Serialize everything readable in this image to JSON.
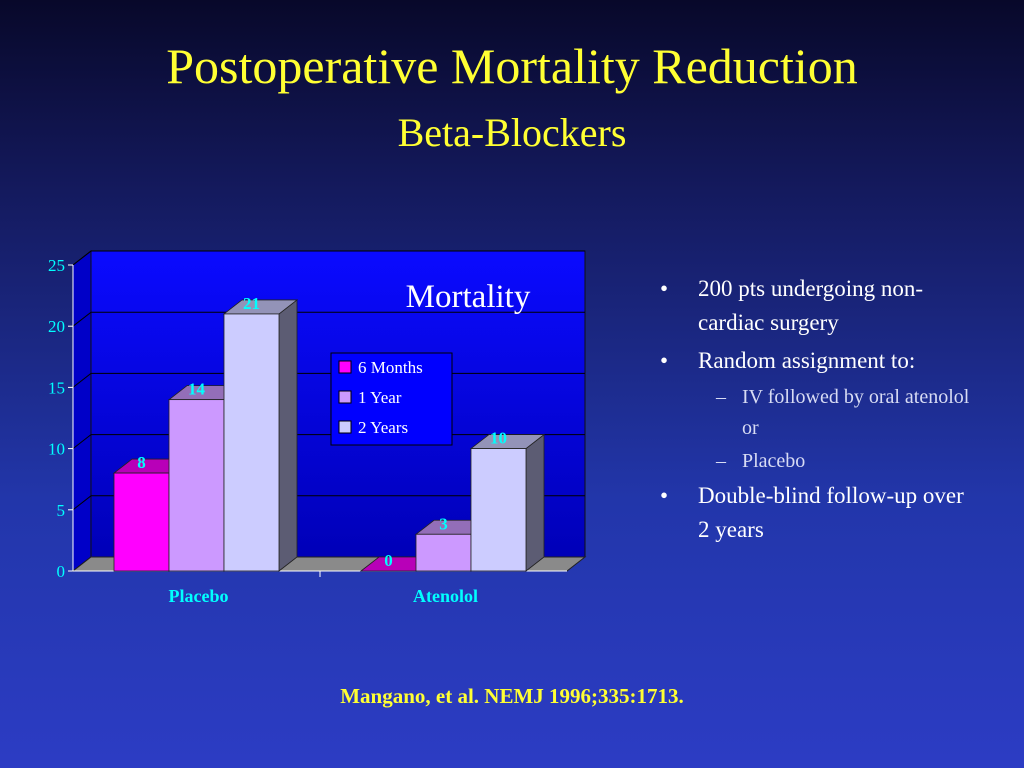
{
  "slide": {
    "title": "Postoperative Mortality Reduction",
    "subtitle": "Beta-Blockers",
    "citation": "Mangano, et al. NEMJ 1996;335:1713."
  },
  "bullets": [
    {
      "level": 1,
      "text": "200 pts undergoing non-cardiac surgery"
    },
    {
      "level": 1,
      "text": "Random assignment to:"
    },
    {
      "level": 2,
      "text": "IV followed by oral atenolol or"
    },
    {
      "level": 2,
      "text": "Placebo"
    },
    {
      "level": 1,
      "text": "Double-blind follow-up over 2 years"
    }
  ],
  "chart_data": {
    "type": "bar",
    "title": "Mortality",
    "categories": [
      "Placebo",
      "Atenolol"
    ],
    "series": [
      {
        "name": "6 Months",
        "values": [
          8,
          0
        ],
        "color": "#ff00ff"
      },
      {
        "name": "1 Year",
        "values": [
          14,
          3
        ],
        "color": "#cc99ff"
      },
      {
        "name": "2 Years",
        "values": [
          21,
          10
        ],
        "color": "#ccccff"
      }
    ],
    "ylim": [
      0,
      25
    ],
    "yticks": [
      0,
      5,
      10,
      15,
      20,
      25
    ],
    "grid": true,
    "legend_position": "center",
    "colors": {
      "plot_background": "#0000ff",
      "tick_label": "#00ffff",
      "data_label": "#00ffff",
      "title_text": "#ffffff"
    }
  }
}
